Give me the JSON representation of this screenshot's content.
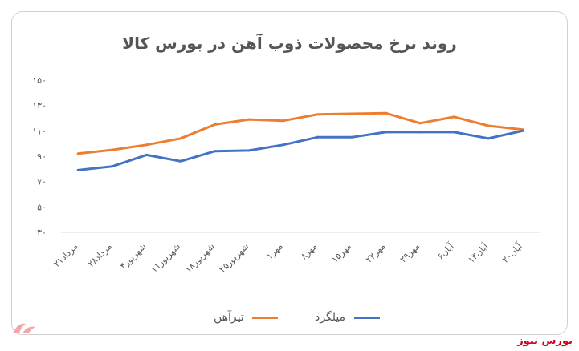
{
  "brand": "بورس نیوز",
  "chart_data": {
    "type": "line",
    "title": "روند نرخ محصولات ذوب آهن در بورس کالا",
    "categories": [
      "۲۱مرداد",
      "۲۸مرداد",
      "۴شهریور",
      "۱۱شهریور",
      "۱۸شهریور",
      "۲۵شهریور",
      "۱مهر",
      "۸مهر",
      "۱۵مهر",
      "۲۲مهر",
      "۲۹مهر",
      "۶آبان",
      "۱۳آبان",
      "۲۰آبان"
    ],
    "yticks": [
      "۱۵۰",
      "۱۳۰",
      "۱۱۰",
      "۹۰",
      "۷۰",
      "۵۰",
      "۳۰"
    ],
    "ylim": [
      30,
      150
    ],
    "series": [
      {
        "name": "تیرآهن",
        "color": "#ed7d31",
        "values": [
          92,
          95,
          99,
          104,
          115,
          119,
          118,
          123,
          123.5,
          124,
          116,
          121,
          114,
          111
        ]
      },
      {
        "name": "میلگرد",
        "color": "#4472c4",
        "values": [
          79,
          82,
          91,
          86,
          94,
          94.5,
          99,
          105,
          105,
          109,
          109,
          109,
          104,
          110
        ]
      }
    ],
    "grid": false,
    "legend": "bottom"
  }
}
